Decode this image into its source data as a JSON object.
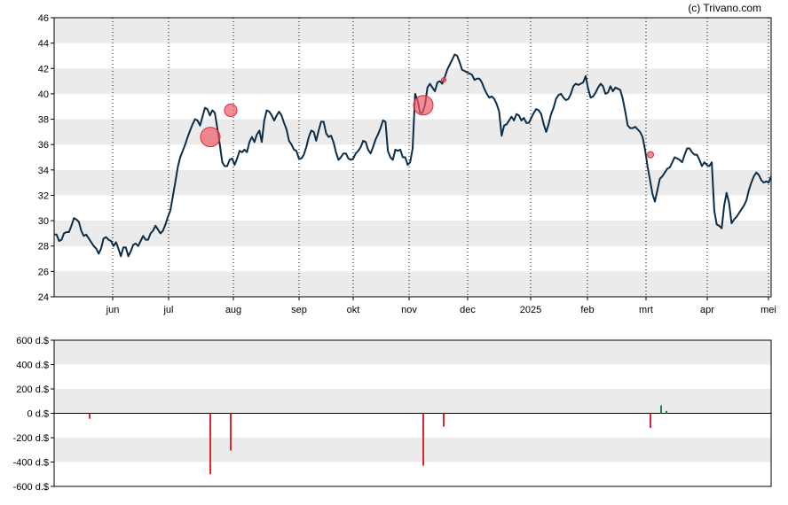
{
  "copyright": "(c) Trivano.com",
  "chart_data": [
    {
      "type": "line",
      "title": "",
      "xlabel": "",
      "ylabel": "",
      "ylim": [
        24,
        46
      ],
      "y_ticks": [
        24,
        26,
        28,
        30,
        32,
        34,
        36,
        38,
        40,
        42,
        44,
        46
      ],
      "x_ticks": [
        "jun",
        "jul",
        "aug",
        "sep",
        "okt",
        "nov",
        "dec",
        "2025",
        "feb",
        "mrt",
        "apr",
        "mei"
      ],
      "grid": "horizontal bands + dotted vertical lines",
      "line_color": "#0c2d48",
      "series": [
        {
          "values": [
            28.9,
            28.9,
            28.4,
            28.5,
            29.0,
            29.1,
            29.1,
            29.6,
            30.2,
            30.1,
            29.9,
            29.2,
            28.8,
            28.9,
            28.6,
            28.3,
            28.0,
            27.8,
            27.4,
            27.8,
            28.6,
            28.7,
            28.5,
            28.4,
            28.0,
            28.3,
            27.8,
            27.2,
            27.9,
            27.9,
            27.2,
            27.6,
            28.1,
            28.2,
            28.0,
            28.4,
            28.8,
            28.5,
            28.5,
            29.0,
            29.2,
            29.6,
            29.3,
            29.0,
            29.2,
            29.7,
            30.3,
            30.8,
            31.9,
            33.0,
            34.2,
            35.0,
            35.5,
            36.0,
            36.6,
            37.1,
            37.6,
            38.0,
            37.9,
            37.5,
            38.2,
            38.9,
            38.8,
            38.3,
            38.7,
            38.5,
            37.3,
            36.0,
            34.6,
            34.3,
            34.3,
            34.8,
            34.9,
            34.4,
            34.9,
            35.5,
            35.4,
            35.6,
            35.4,
            36.2,
            36.6,
            36.2,
            36.8,
            37.1,
            36.2,
            37.9,
            38.7,
            38.6,
            38.3,
            37.9,
            38.3,
            38.6,
            38.3,
            37.7,
            37.2,
            36.3,
            36.0,
            35.6,
            35.5,
            34.9,
            34.9,
            35.2,
            35.8,
            36.6,
            37.1,
            37.0,
            36.3,
            37.1,
            37.8,
            37.8,
            36.9,
            36.6,
            36.7,
            36.2,
            35.4,
            34.8,
            35.0,
            35.3,
            35.3,
            34.9,
            34.8,
            34.9,
            35.3,
            35.5,
            35.8,
            36.3,
            36.2,
            35.6,
            35.3,
            35.8,
            36.4,
            36.8,
            37.3,
            37.9,
            37.8,
            35.5,
            35.0,
            34.8,
            35.6,
            35.5,
            35.6,
            35.0,
            35.0,
            34.4,
            34.6,
            35.7,
            40.0,
            39.5,
            38.5,
            38.5,
            39.1,
            40.5,
            40.8,
            40.5,
            40.2,
            40.9,
            41.0,
            40.8,
            41.3,
            41.9,
            42.3,
            42.7,
            43.1,
            43.0,
            42.5,
            41.9,
            41.8,
            41.7,
            41.6,
            41.5,
            41.1,
            41.2,
            41.2,
            40.9,
            40.4,
            40.0,
            39.7,
            39.8,
            39.6,
            39.2,
            38.6,
            36.7,
            37.5,
            37.6,
            37.9,
            38.2,
            37.9,
            38.4,
            38.3,
            37.9,
            38.1,
            37.7,
            37.7,
            38.1,
            38.5,
            38.8,
            38.7,
            38.4,
            37.6,
            37.0,
            37.6,
            38.4,
            38.9,
            39.6,
            39.9,
            40.0,
            39.7,
            39.5,
            39.6,
            40.0,
            40.6,
            40.8,
            40.7,
            40.8,
            40.9,
            41.4,
            40.4,
            39.7,
            39.8,
            40.1,
            40.5,
            40.8,
            40.6,
            40.0,
            40.1,
            40.6,
            40.2,
            40.5,
            40.4,
            40.3,
            39.6,
            38.6,
            37.5,
            37.3,
            37.3,
            37.4,
            37.2,
            37.0,
            36.6,
            35.6,
            34.3,
            33.2,
            32.1,
            31.5,
            32.4,
            33.3,
            33.5,
            33.8,
            34.1,
            34.2,
            34.6,
            35.0,
            34.9,
            34.8,
            34.6,
            35.2,
            35.7,
            35.7,
            35.4,
            35.2,
            35.2,
            34.8,
            34.3,
            34.6,
            34.4,
            34.3,
            34.6,
            30.8,
            29.7,
            29.6,
            29.4,
            31.2,
            32.2,
            31.4,
            29.8,
            30.1,
            30.3,
            30.6,
            30.9,
            31.2,
            31.6,
            32.4,
            33.0,
            33.5,
            33.8,
            33.6,
            33.2,
            33.0,
            33.1,
            33.0,
            33.5
          ]
        }
      ],
      "event_markers": [
        {
          "position": "jul-end",
          "value": 36.6,
          "size": "large",
          "color": "#ef5b66"
        },
        {
          "position": "aug-start",
          "value": 38.7,
          "size": "medium",
          "color": "#ef5b66"
        },
        {
          "position": "nov-mid",
          "value": 39.1,
          "size": "large",
          "color": "#ef5b66"
        },
        {
          "position": "nov-end",
          "value": 41.1,
          "size": "tiny",
          "color": "#ef5b66"
        },
        {
          "position": "mrt-start",
          "value": 35.2,
          "size": "small",
          "color": "#ef5b66"
        }
      ]
    },
    {
      "type": "bar",
      "title": "",
      "ylim": [
        -600,
        600
      ],
      "y_ticks": [
        "600 d.$",
        "400 d.$",
        "200 d.$",
        "0 d.$",
        "-200 d.$",
        "-400 d.$",
        "-600 d.$"
      ],
      "y_tick_values": [
        600,
        400,
        200,
        0,
        -200,
        -400,
        -600
      ],
      "negative_color": "#e3242b",
      "positive_color": "#1e8a3d",
      "bars": [
        {
          "position": "may-end",
          "value": -45
        },
        {
          "position": "jul-end",
          "value": -500
        },
        {
          "position": "aug-start",
          "value": -305
        },
        {
          "position": "nov-mid",
          "value": -430
        },
        {
          "position": "nov-end",
          "value": -110
        },
        {
          "position": "mrt-start",
          "value": -120
        },
        {
          "position": "mrt-early",
          "value": 65
        },
        {
          "position": "mrt-early2",
          "value": 20
        }
      ]
    }
  ]
}
